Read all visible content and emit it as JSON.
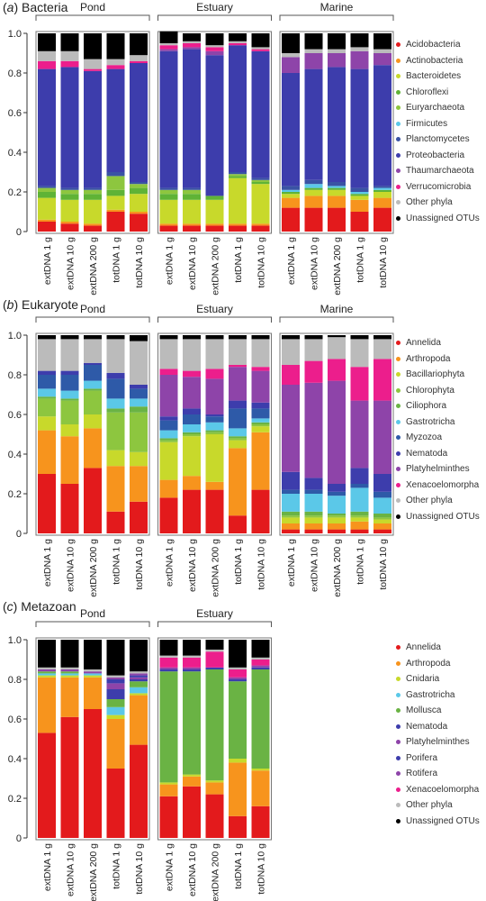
{
  "colors": {
    "Acidobacteria": "#e31a1c",
    "Actinobacteria": "#f7941d",
    "Bacteroidetes": "#c8d92b",
    "Chloroflexi": "#5fb336",
    "Euryarchaeota": "#8dc63f",
    "Firmicutes": "#5bc8e8",
    "Planctomycetes": "#3a53a4",
    "Proteobacteria": "#3d3dac",
    "Thaumarchaeota": "#8e44a9",
    "Verrucomicrobia": "#ec1e8c",
    "Annelida": "#e31a1c",
    "Arthropoda": "#f7941d",
    "Bacillariophyta": "#c8d92b",
    "Chlorophyta": "#8dc63f",
    "Ciliophora": "#6ab344",
    "Gastrotricha": "#5bc8e8",
    "Myzozoa": "#2e5aa8",
    "Nematoda": "#3d3dac",
    "Platyhelminthes": "#8e44a9",
    "Xenacoelomorpha": "#ec1e8c",
    "Cnidaria": "#c8d92b",
    "Mollusca": "#6ab344",
    "Porifera": "#3d3dac",
    "Rotifera": "#8e44a9",
    "Other phyla": "#bbbbbb",
    "Unassigned OTUs": "#000000"
  },
  "chart_data": [
    {
      "id": "a",
      "type": "bar",
      "stacked": true,
      "title_letter": "a",
      "title_name": "Bacteria",
      "ylim": [
        0,
        1
      ],
      "yticks": [
        "0",
        "0.2",
        "0.4",
        "0.6",
        "0.8",
        "1.0"
      ],
      "groups": [
        {
          "name": "Pond",
          "categories": [
            "extDNA 1 g",
            "extDNA 10 g",
            "extDNA 200 g",
            "totDNA 1 g",
            "totDNA 10 g"
          ]
        },
        {
          "name": "Estuary",
          "categories": [
            "extDNA 1 g",
            "extDNA 10 g",
            "extDNA 200 g",
            "totDNA 1 g",
            "totDNA 10 g"
          ]
        },
        {
          "name": "Marine",
          "categories": [
            "extDNA 1 g",
            "extDNA 10 g",
            "extDNA 200 g",
            "totDNA 1 g",
            "totDNA 10 g"
          ]
        }
      ],
      "series": [
        {
          "name": "Acidobacteria",
          "values": [
            0.05,
            0.04,
            0.03,
            0.1,
            0.09,
            0.03,
            0.03,
            0.03,
            0.03,
            0.03,
            0.12,
            0.12,
            0.12,
            0.1,
            0.12
          ]
        },
        {
          "name": "Actinobacteria",
          "values": [
            0.01,
            0.01,
            0.01,
            0.01,
            0.01,
            0.01,
            0.01,
            0.01,
            0.01,
            0.01,
            0.05,
            0.06,
            0.06,
            0.06,
            0.05
          ]
        },
        {
          "name": "Bacteroidetes",
          "values": [
            0.11,
            0.11,
            0.12,
            0.07,
            0.09,
            0.12,
            0.12,
            0.12,
            0.23,
            0.2,
            0.02,
            0.03,
            0.03,
            0.02,
            0.03
          ]
        },
        {
          "name": "Chloroflexi",
          "values": [
            0.03,
            0.03,
            0.03,
            0.03,
            0.03,
            0.03,
            0.03,
            0.02,
            0.01,
            0.01,
            0.01,
            0.01,
            0.01,
            0.01,
            0.01
          ]
        },
        {
          "name": "Euryarchaeota",
          "values": [
            0.02,
            0.02,
            0.02,
            0.07,
            0.02,
            0.02,
            0.02,
            0.0,
            0.01,
            0.01,
            0.0,
            0.0,
            0.0,
            0.0,
            0.0
          ]
        },
        {
          "name": "Firmicutes",
          "values": [
            0.0,
            0.0,
            0.0,
            0.0,
            0.0,
            0.0,
            0.0,
            0.0,
            0.0,
            0.0,
            0.01,
            0.02,
            0.01,
            0.01,
            0.01
          ]
        },
        {
          "name": "Planctomycetes",
          "values": [
            0.01,
            0.01,
            0.01,
            0.02,
            0.01,
            0.01,
            0.01,
            0.0,
            0.01,
            0.01,
            0.02,
            0.02,
            0.02,
            0.02,
            0.01
          ]
        },
        {
          "name": "Proteobacteria",
          "values": [
            0.59,
            0.61,
            0.59,
            0.52,
            0.6,
            0.69,
            0.7,
            0.71,
            0.64,
            0.64,
            0.57,
            0.56,
            0.58,
            0.6,
            0.61
          ]
        },
        {
          "name": "Thaumarchaeota",
          "values": [
            0.0,
            0.0,
            0.0,
            0.0,
            0.0,
            0.01,
            0.01,
            0.02,
            0.0,
            0.0,
            0.08,
            0.08,
            0.07,
            0.09,
            0.06
          ]
        },
        {
          "name": "Verrucomicrobia",
          "values": [
            0.04,
            0.03,
            0.01,
            0.02,
            0.01,
            0.02,
            0.02,
            0.02,
            0.01,
            0.01,
            0.0,
            0.0,
            0.0,
            0.0,
            0.0
          ]
        },
        {
          "name": "Other phyla",
          "values": [
            0.05,
            0.05,
            0.05,
            0.03,
            0.03,
            0.01,
            0.01,
            0.01,
            0.01,
            0.01,
            0.02,
            0.02,
            0.02,
            0.02,
            0.02
          ]
        },
        {
          "name": "Unassigned OTUs",
          "values": [
            0.09,
            0.09,
            0.13,
            0.13,
            0.11,
            0.06,
            0.04,
            0.06,
            0.04,
            0.07,
            0.1,
            0.08,
            0.08,
            0.07,
            0.08
          ]
        }
      ]
    },
    {
      "id": "b",
      "type": "bar",
      "stacked": true,
      "title_letter": "b",
      "title_name": "Eukaryote",
      "ylim": [
        0,
        1
      ],
      "yticks": [
        "0",
        "0.2",
        "0.4",
        "0.6",
        "0.8",
        "1.0"
      ],
      "groups": [
        {
          "name": "Pond",
          "categories": [
            "extDNA 1 g",
            "extDNA 10 g",
            "extDNA 200 g",
            "totDNA 1 g",
            "totDNA 10 g"
          ]
        },
        {
          "name": "Estuary",
          "categories": [
            "extDNA 1 g",
            "extDNA 10 g",
            "extDNA 200 g",
            "totDNA 1 g",
            "totDNA 10 g"
          ]
        },
        {
          "name": "Marine",
          "categories": [
            "extDNA 1 g",
            "extDNA 10 g",
            "extDNA 200 g",
            "totDNA 1 g",
            "totDNA 10 g"
          ]
        }
      ],
      "series": [
        {
          "name": "Annelida",
          "values": [
            0.3,
            0.25,
            0.33,
            0.11,
            0.16,
            0.18,
            0.22,
            0.22,
            0.09,
            0.22,
            0.02,
            0.02,
            0.02,
            0.02,
            0.02
          ]
        },
        {
          "name": "Arthropoda",
          "values": [
            0.22,
            0.24,
            0.2,
            0.23,
            0.18,
            0.09,
            0.07,
            0.04,
            0.34,
            0.29,
            0.03,
            0.03,
            0.03,
            0.04,
            0.03
          ]
        },
        {
          "name": "Bacillariophyta",
          "values": [
            0.07,
            0.06,
            0.07,
            0.08,
            0.07,
            0.19,
            0.2,
            0.24,
            0.04,
            0.03,
            0.03,
            0.03,
            0.03,
            0.02,
            0.02
          ]
        },
        {
          "name": "Chlorophyta",
          "values": [
            0.09,
            0.12,
            0.12,
            0.19,
            0.2,
            0.01,
            0.01,
            0.01,
            0.01,
            0.01,
            0.01,
            0.01,
            0.01,
            0.01,
            0.01
          ]
        },
        {
          "name": "Ciliophora",
          "values": [
            0.01,
            0.01,
            0.01,
            0.02,
            0.03,
            0.01,
            0.01,
            0.01,
            0.01,
            0.01,
            0.02,
            0.02,
            0.01,
            0.02,
            0.02
          ]
        },
        {
          "name": "Gastrotricha",
          "values": [
            0.04,
            0.04,
            0.04,
            0.05,
            0.04,
            0.04,
            0.04,
            0.04,
            0.04,
            0.02,
            0.09,
            0.09,
            0.09,
            0.12,
            0.08
          ]
        },
        {
          "name": "Myzozoa",
          "values": [
            0.07,
            0.08,
            0.08,
            0.1,
            0.05,
            0.05,
            0.05,
            0.03,
            0.1,
            0.05,
            0.02,
            0.02,
            0.02,
            0.02,
            0.03
          ]
        },
        {
          "name": "Nematoda",
          "values": [
            0.02,
            0.02,
            0.01,
            0.03,
            0.02,
            0.02,
            0.03,
            0.01,
            0.04,
            0.03,
            0.09,
            0.06,
            0.04,
            0.08,
            0.09
          ]
        },
        {
          "name": "Platyhelminthes",
          "values": [
            0.0,
            0.0,
            0.0,
            0.0,
            0.0,
            0.21,
            0.16,
            0.18,
            0.17,
            0.16,
            0.44,
            0.48,
            0.52,
            0.34,
            0.37
          ]
        },
        {
          "name": "Xenacoelomorpha",
          "values": [
            0.0,
            0.0,
            0.0,
            0.0,
            0.0,
            0.03,
            0.03,
            0.05,
            0.01,
            0.02,
            0.1,
            0.11,
            0.11,
            0.17,
            0.21
          ]
        },
        {
          "name": "Other phyla",
          "values": [
            0.16,
            0.16,
            0.12,
            0.17,
            0.22,
            0.15,
            0.16,
            0.15,
            0.13,
            0.14,
            0.13,
            0.11,
            0.11,
            0.14,
            0.1
          ]
        },
        {
          "name": "Unassigned OTUs",
          "values": [
            0.02,
            0.02,
            0.02,
            0.02,
            0.03,
            0.02,
            0.02,
            0.02,
            0.02,
            0.02,
            0.02,
            0.02,
            0.01,
            0.02,
            0.02
          ]
        }
      ]
    },
    {
      "id": "c",
      "type": "bar",
      "stacked": true,
      "title_letter": "c",
      "title_name": "Metazoan",
      "ylim": [
        0,
        1
      ],
      "yticks": [
        "0",
        "0.2",
        "0.4",
        "0.6",
        "0.8",
        "1.0"
      ],
      "groups": [
        {
          "name": "Pond",
          "categories": [
            "extDNA 1 g",
            "extDNA 10 g",
            "extDNA 200 g",
            "totDNA 1 g",
            "totDNA 10 g"
          ]
        },
        {
          "name": "Estuary",
          "categories": [
            "extDNA 1 g",
            "extDNA 10 g",
            "extDNA 200 g",
            "totDNA 1 g",
            "totDNA 10 g"
          ]
        }
      ],
      "series": [
        {
          "name": "Annelida",
          "values": [
            0.53,
            0.61,
            0.65,
            0.35,
            0.47,
            0.21,
            0.26,
            0.22,
            0.11,
            0.16
          ]
        },
        {
          "name": "Arthropoda",
          "values": [
            0.28,
            0.2,
            0.16,
            0.25,
            0.25,
            0.06,
            0.05,
            0.06,
            0.27,
            0.18
          ]
        },
        {
          "name": "Cnidaria",
          "values": [
            0.01,
            0.01,
            0.01,
            0.02,
            0.01,
            0.01,
            0.01,
            0.01,
            0.02,
            0.01
          ]
        },
        {
          "name": "Gastrotricha",
          "values": [
            0.01,
            0.01,
            0.01,
            0.04,
            0.03,
            0.0,
            0.0,
            0.0,
            0.0,
            0.0
          ]
        },
        {
          "name": "Mollusca",
          "values": [
            0.01,
            0.01,
            0.0,
            0.04,
            0.03,
            0.56,
            0.52,
            0.56,
            0.39,
            0.5
          ]
        },
        {
          "name": "Nematoda",
          "values": [
            0.0,
            0.0,
            0.0,
            0.05,
            0.01,
            0.01,
            0.01,
            0.01,
            0.01,
            0.01
          ]
        },
        {
          "name": "Platyhelminthes",
          "values": [
            0.01,
            0.01,
            0.01,
            0.03,
            0.01,
            0.01,
            0.01,
            0.0,
            0.01,
            0.01
          ]
        },
        {
          "name": "Porifera",
          "values": [
            0.0,
            0.0,
            0.0,
            0.02,
            0.01,
            0.0,
            0.0,
            0.0,
            0.0,
            0.0
          ]
        },
        {
          "name": "Rotifera",
          "values": [
            0.0,
            0.0,
            0.0,
            0.01,
            0.01,
            0.0,
            0.0,
            0.0,
            0.0,
            0.0
          ]
        },
        {
          "name": "Xenacoelomorpha",
          "values": [
            0.0,
            0.0,
            0.0,
            0.0,
            0.0,
            0.05,
            0.05,
            0.08,
            0.04,
            0.03
          ]
        },
        {
          "name": "Other phyla",
          "values": [
            0.01,
            0.01,
            0.01,
            0.01,
            0.01,
            0.01,
            0.01,
            0.01,
            0.01,
            0.01
          ]
        },
        {
          "name": "Unassigned OTUs",
          "values": [
            0.14,
            0.14,
            0.15,
            0.18,
            0.16,
            0.08,
            0.08,
            0.05,
            0.14,
            0.09
          ]
        }
      ]
    }
  ]
}
